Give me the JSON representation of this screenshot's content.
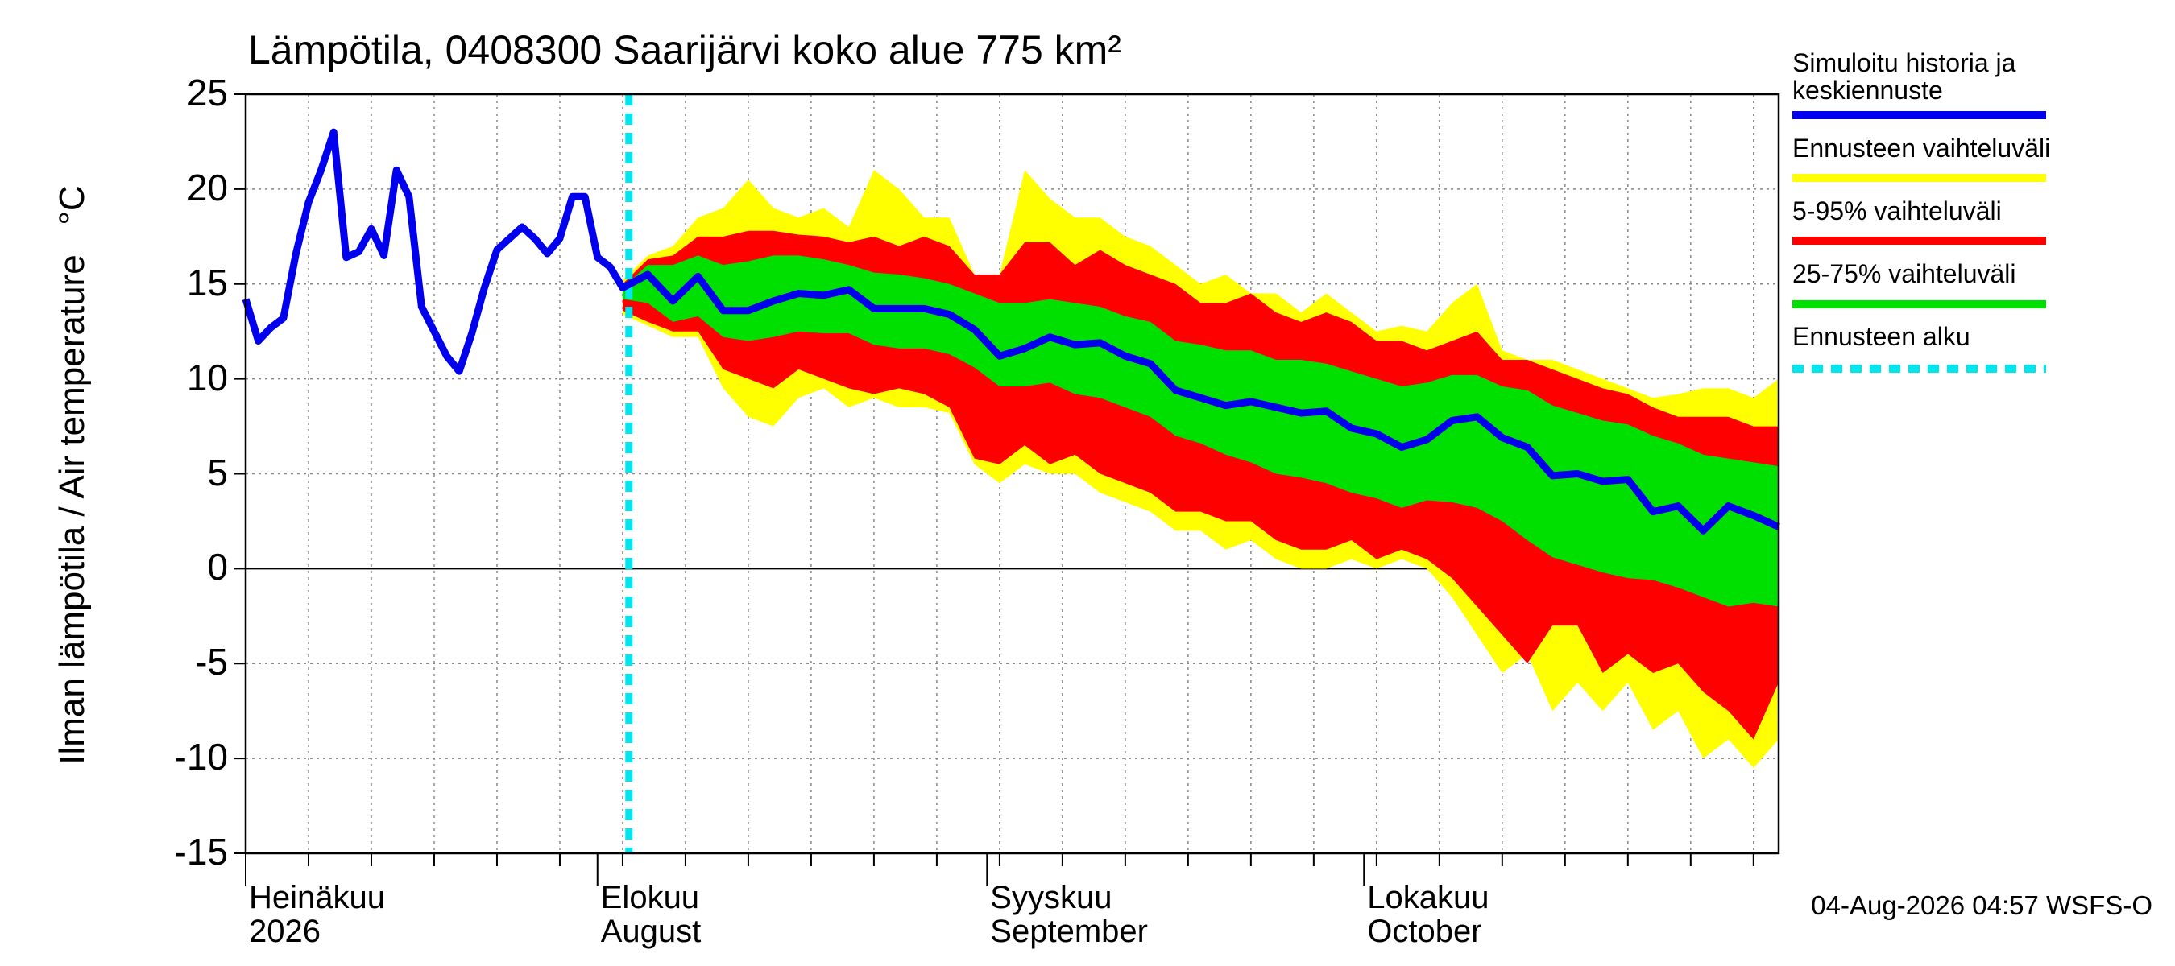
{
  "chart_data": {
    "type": "band_line",
    "title": "Lämpötila, 0408300 Saarijärvi koko alue 775 km²",
    "y_label": "Ilman lämpötila / Air temperature   °C",
    "footer": "04-Aug-2026 04:57 WSFS-O",
    "xlim": [
      0,
      122
    ],
    "ylim": [
      -15,
      25
    ],
    "yticks": [
      25,
      20,
      15,
      10,
      5,
      0,
      -5,
      -10,
      -15
    ],
    "xticks": [
      {
        "value": 0,
        "label": "Heinäkuu\n2026"
      },
      {
        "value": 28,
        "label": "Elokuu\nAugust"
      },
      {
        "value": 59,
        "label": "Syyskuu\nSeptember"
      },
      {
        "value": 89,
        "label": "Lokakuu\nOctober"
      }
    ],
    "xgrid": [
      5,
      10,
      15,
      20,
      25,
      30,
      35,
      40,
      45,
      50,
      55,
      60,
      65,
      70,
      75,
      80,
      85,
      90,
      95,
      100,
      105,
      110,
      115,
      120
    ],
    "grid": true,
    "band_x": [
      30,
      32,
      34,
      36,
      38,
      40,
      42,
      44,
      46,
      48,
      50,
      52,
      54,
      56,
      58,
      60,
      62,
      64,
      66,
      68,
      70,
      72,
      74,
      76,
      78,
      80,
      82,
      84,
      86,
      88,
      90,
      92,
      94,
      96,
      98,
      100,
      102,
      104,
      106,
      108,
      110,
      112,
      114,
      116,
      118,
      120,
      122
    ],
    "bands": [
      {
        "name": "Ennusteen vaihteluväli",
        "color": "#ffff00",
        "low": [
          13.4,
          12.8,
          12.2,
          12.2,
          9.5,
          8,
          7.5,
          9,
          9.5,
          8.5,
          9,
          8.5,
          8.5,
          8.2,
          5.5,
          4.5,
          5.5,
          5,
          5,
          4,
          3.5,
          3,
          2,
          2,
          1,
          1.5,
          0.5,
          0,
          0,
          0.5,
          0,
          0.5,
          0,
          -1.5,
          -3.5,
          -5.5,
          -4.5,
          -7.5,
          -6,
          -7.5,
          -6,
          -8.5,
          -7.5,
          -10,
          -9,
          -10.5,
          -9
        ],
        "high": [
          15.2,
          16.5,
          17,
          18.5,
          19,
          20.5,
          19,
          18.5,
          19,
          18,
          21,
          20,
          18.5,
          18.5,
          15.5,
          15.5,
          21,
          19.5,
          18.5,
          18.5,
          17.5,
          17,
          16,
          15,
          15.5,
          14.5,
          14.5,
          13.5,
          14.5,
          13.5,
          12.5,
          12.8,
          12.5,
          14,
          15,
          11.5,
          11,
          11,
          10.5,
          10,
          9.5,
          9,
          9.2,
          9.5,
          9.5,
          9,
          10
        ]
      },
      {
        "name": "5-95% vaihteluväli",
        "color": "#ff0000",
        "low": [
          13.6,
          13,
          12.5,
          12.5,
          10.5,
          10,
          9.5,
          10.5,
          10,
          9.5,
          9.2,
          9.5,
          9.2,
          8.5,
          5.8,
          5.5,
          6.5,
          5.5,
          6,
          5,
          4.5,
          4,
          3,
          3,
          2.5,
          2.5,
          1.5,
          1,
          1,
          1.5,
          0.5,
          1,
          0.5,
          -0.5,
          -2,
          -3.5,
          -5,
          -3,
          -3,
          -5.5,
          -4.5,
          -5.5,
          -5,
          -6.5,
          -7.5,
          -9,
          -6
        ],
        "high": [
          15,
          16.3,
          16.5,
          17.5,
          17.5,
          17.8,
          17.8,
          17.6,
          17.5,
          17.2,
          17.5,
          17,
          17.5,
          17,
          15.5,
          15.5,
          17.2,
          17.2,
          16,
          16.8,
          16,
          15.5,
          15,
          14,
          14,
          14.5,
          13.5,
          13,
          13.5,
          13,
          12,
          12,
          11.5,
          12,
          12.5,
          11,
          11,
          10.5,
          10,
          9.5,
          9.2,
          8.5,
          8,
          8,
          8,
          7.5,
          7.5
        ]
      },
      {
        "name": "25-75% vaihteluväli",
        "color": "#00e000",
        "low": [
          14.2,
          14,
          13,
          13.3,
          12.2,
          12,
          12.2,
          12.5,
          12.4,
          12.4,
          11.8,
          11.6,
          11.6,
          11.3,
          10.6,
          9.6,
          9.6,
          9.8,
          9.2,
          9,
          8.5,
          8,
          7,
          6.6,
          6,
          5.6,
          5,
          4.8,
          4.5,
          4,
          3.7,
          3.2,
          3.6,
          3.5,
          3.2,
          2.5,
          1.5,
          0.6,
          0.2,
          -0.2,
          -0.5,
          -0.6,
          -1,
          -1.5,
          -2,
          -1.8,
          -2
        ],
        "high": [
          14.8,
          16,
          16,
          16.5,
          16,
          16.2,
          16.5,
          16.5,
          16.3,
          16,
          15.6,
          15.5,
          15.3,
          15,
          14.5,
          14,
          14,
          14.2,
          14,
          13.8,
          13.3,
          13,
          12,
          11.8,
          11.5,
          11.5,
          11,
          11,
          10.8,
          10.4,
          10,
          9.6,
          9.8,
          10.2,
          10.2,
          9.6,
          9.4,
          8.6,
          8.2,
          7.8,
          7.6,
          7,
          6.6,
          6,
          5.8,
          5.6,
          5.4
        ]
      }
    ],
    "series": [
      {
        "name": "Simuloitu historia ja\nkeskiennuste",
        "color": "#0000ee",
        "x": [
          0,
          1,
          2,
          3,
          4,
          5,
          6,
          7,
          8,
          9,
          10,
          11,
          12,
          13,
          14,
          15,
          16,
          17,
          18,
          19,
          20,
          21,
          22,
          23,
          24,
          25,
          26,
          27,
          28,
          29,
          30,
          32,
          34,
          36,
          38,
          40,
          42,
          44,
          46,
          48,
          50,
          52,
          54,
          56,
          58,
          60,
          62,
          64,
          66,
          68,
          70,
          72,
          74,
          76,
          78,
          80,
          82,
          84,
          86,
          88,
          90,
          92,
          94,
          96,
          98,
          100,
          102,
          104,
          106,
          108,
          110,
          112,
          114,
          116,
          118,
          120,
          122
        ],
        "values": [
          14.2,
          12,
          12.7,
          13.2,
          16.6,
          19.3,
          21,
          23,
          16.4,
          16.7,
          17.9,
          16.5,
          21,
          19.6,
          13.8,
          12.5,
          11.2,
          10.4,
          12.4,
          14.8,
          16.8,
          17.4,
          18,
          17.4,
          16.6,
          17.4,
          19.6,
          19.6,
          16.4,
          15.9,
          14.8,
          15.5,
          14.1,
          15.4,
          13.6,
          13.6,
          14.1,
          14.5,
          14.4,
          14.7,
          13.7,
          13.7,
          13.7,
          13.4,
          12.6,
          11.2,
          11.6,
          12.2,
          11.8,
          11.9,
          11.2,
          10.8,
          9.4,
          9,
          8.6,
          8.8,
          8.5,
          8.2,
          8.3,
          7.4,
          7.1,
          6.4,
          6.8,
          7.8,
          8,
          6.9,
          6.4,
          4.9,
          5,
          4.6,
          4.7,
          3,
          3.3,
          2,
          3.3,
          2.8,
          2.2
        ]
      }
    ],
    "forecast_start": {
      "name": "Ennusteen alku",
      "color": "#00e5ee",
      "value": 30.5
    }
  }
}
